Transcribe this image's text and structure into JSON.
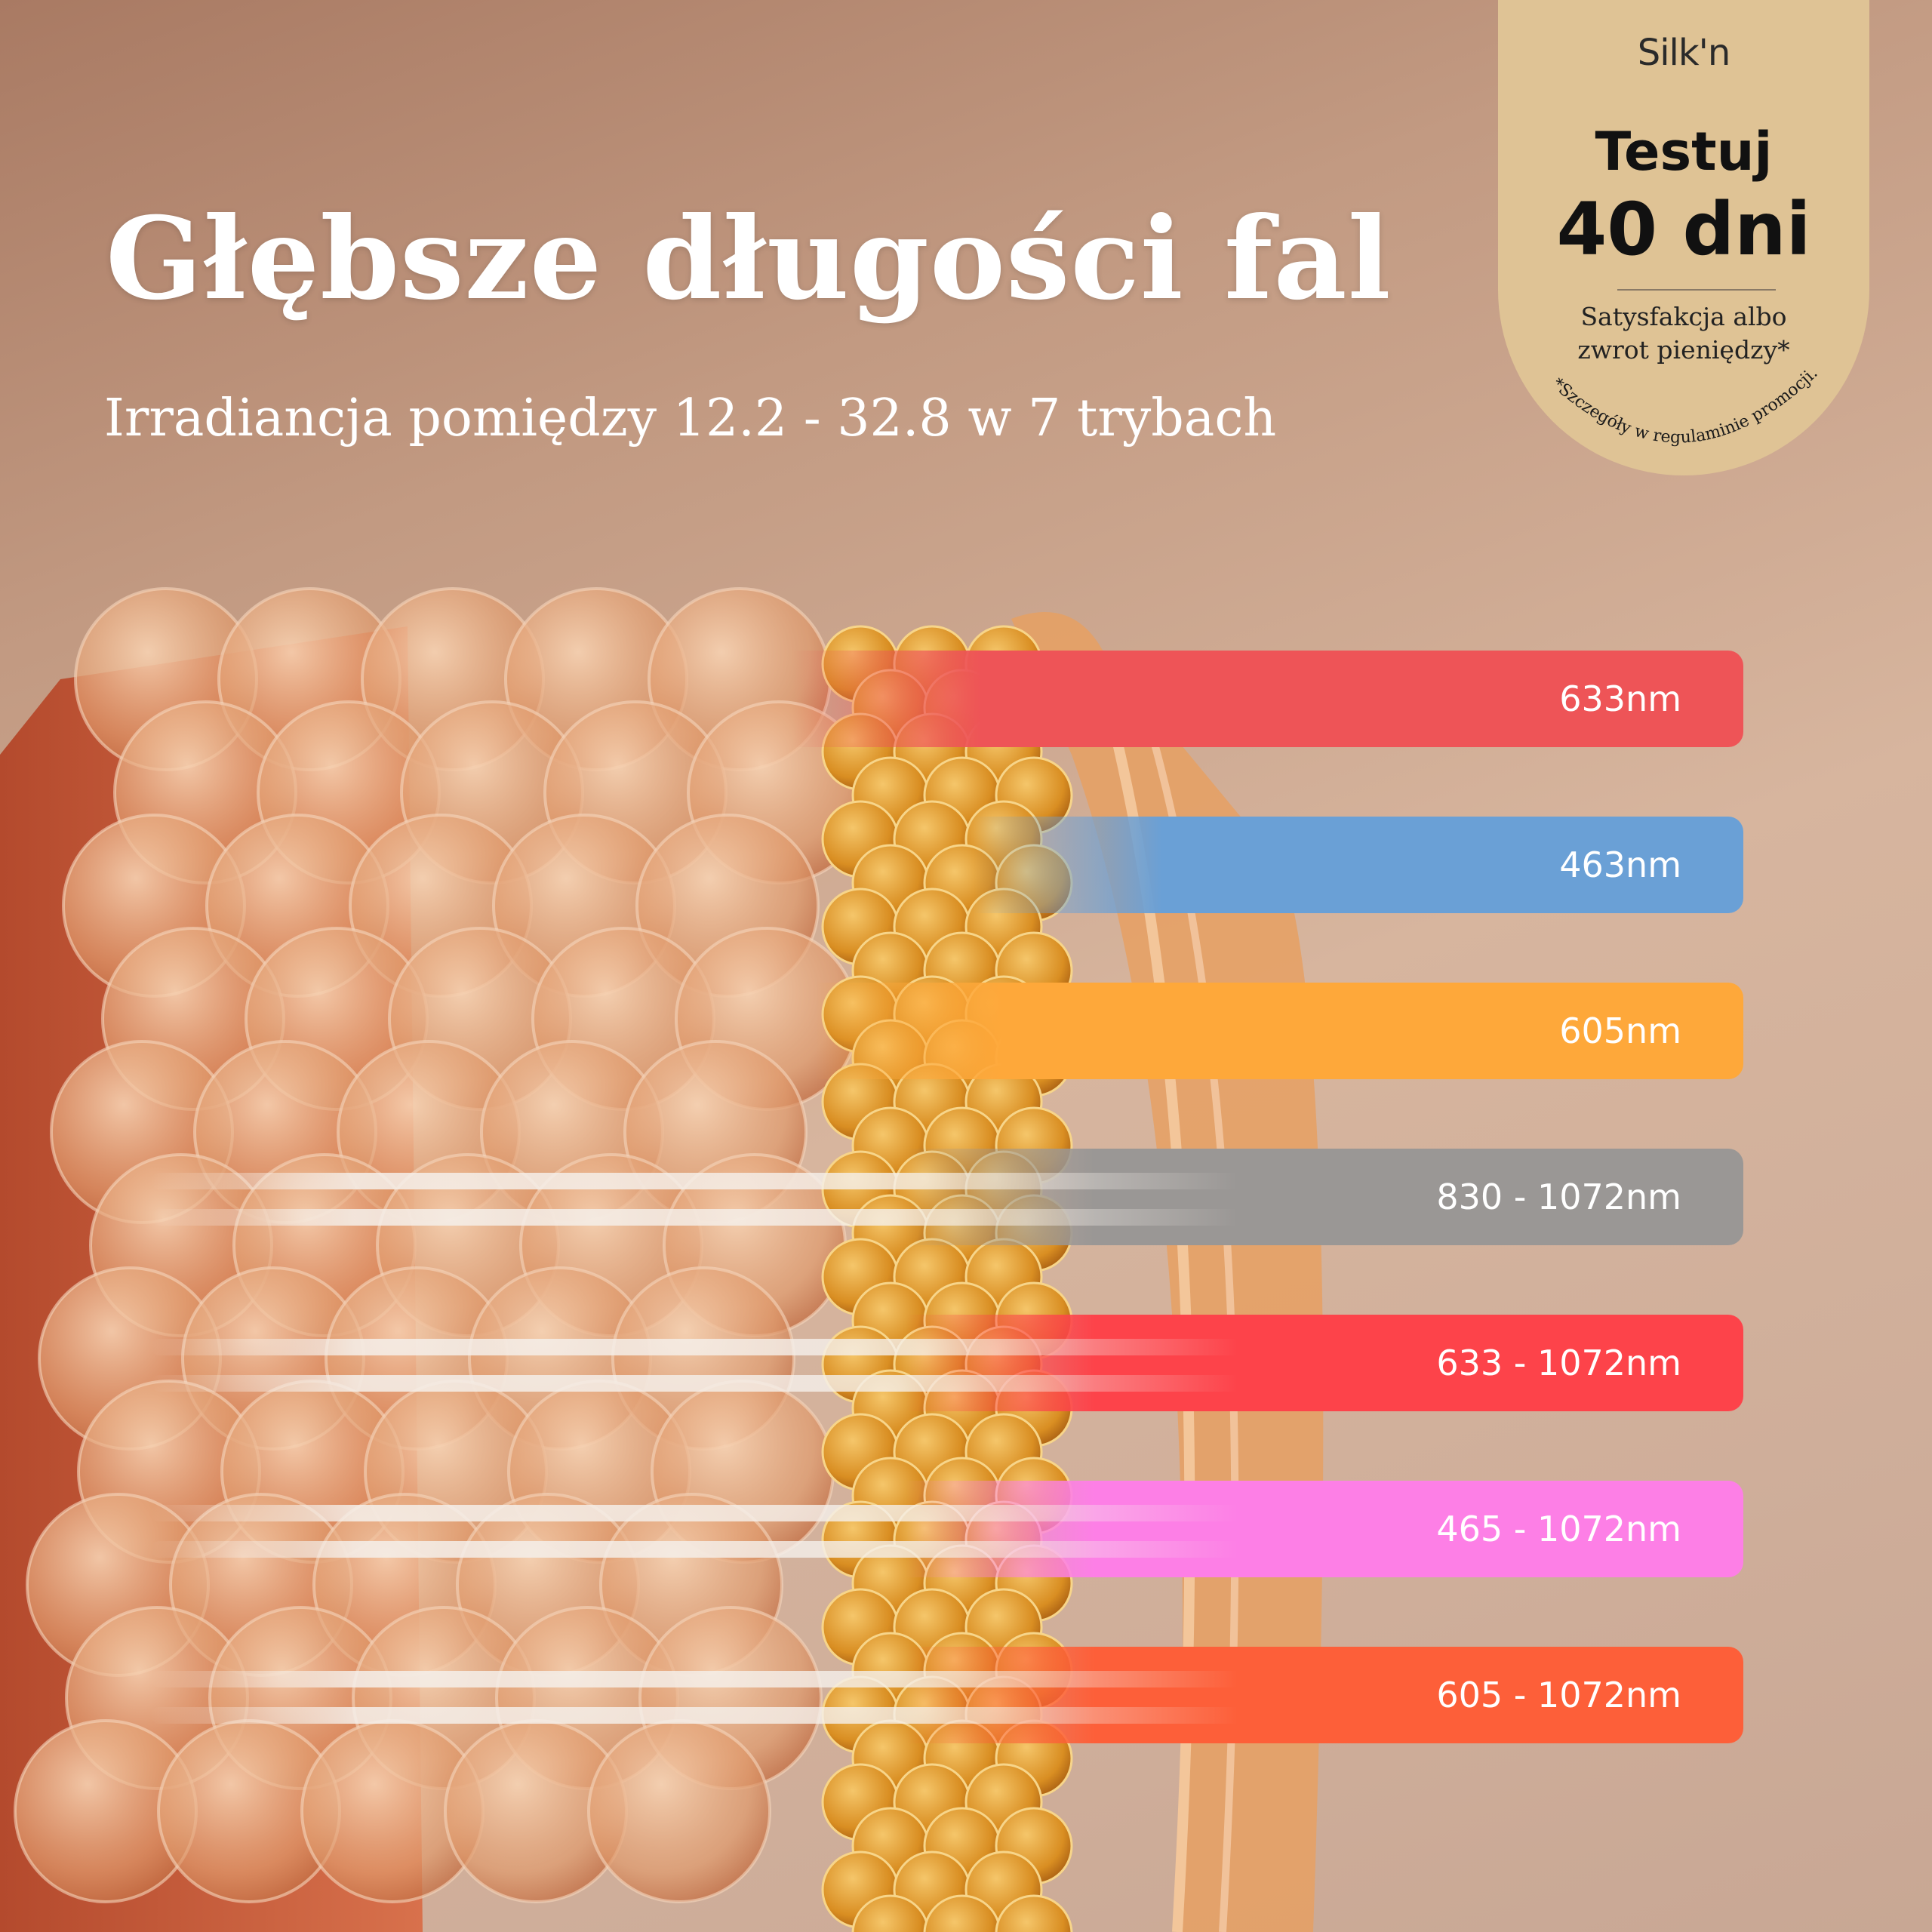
{
  "headline": {
    "title": "Głębsze długości fal",
    "subtitle": "Irradiancja pomiędzy 12.2 - 32.8 w 7 trybach"
  },
  "badge": {
    "logo": "Silk'n",
    "title": "Testuj",
    "days": "40 dni",
    "tagline_line1": "Satysfakcja albo",
    "tagline_line2": "zwrot pieniędzy*",
    "footnote": "*Szczegóły w regulaminie promocji.",
    "color": "#dfc395"
  },
  "wavelength_modes": [
    {
      "label": "633nm",
      "color": "#ee5457"
    },
    {
      "label": "463nm",
      "color": "#6aa0d6"
    },
    {
      "label": "605nm",
      "color": "#fea83a"
    },
    {
      "label": "830 - 1072nm",
      "color": "#9a9795"
    },
    {
      "label": "633 - 1072nm",
      "color": "#fd434a"
    },
    {
      "label": "465 - 1072nm",
      "color": "#fd7fe6"
    },
    {
      "label": "605 - 1072nm",
      "color": "#fd5f39"
    }
  ]
}
